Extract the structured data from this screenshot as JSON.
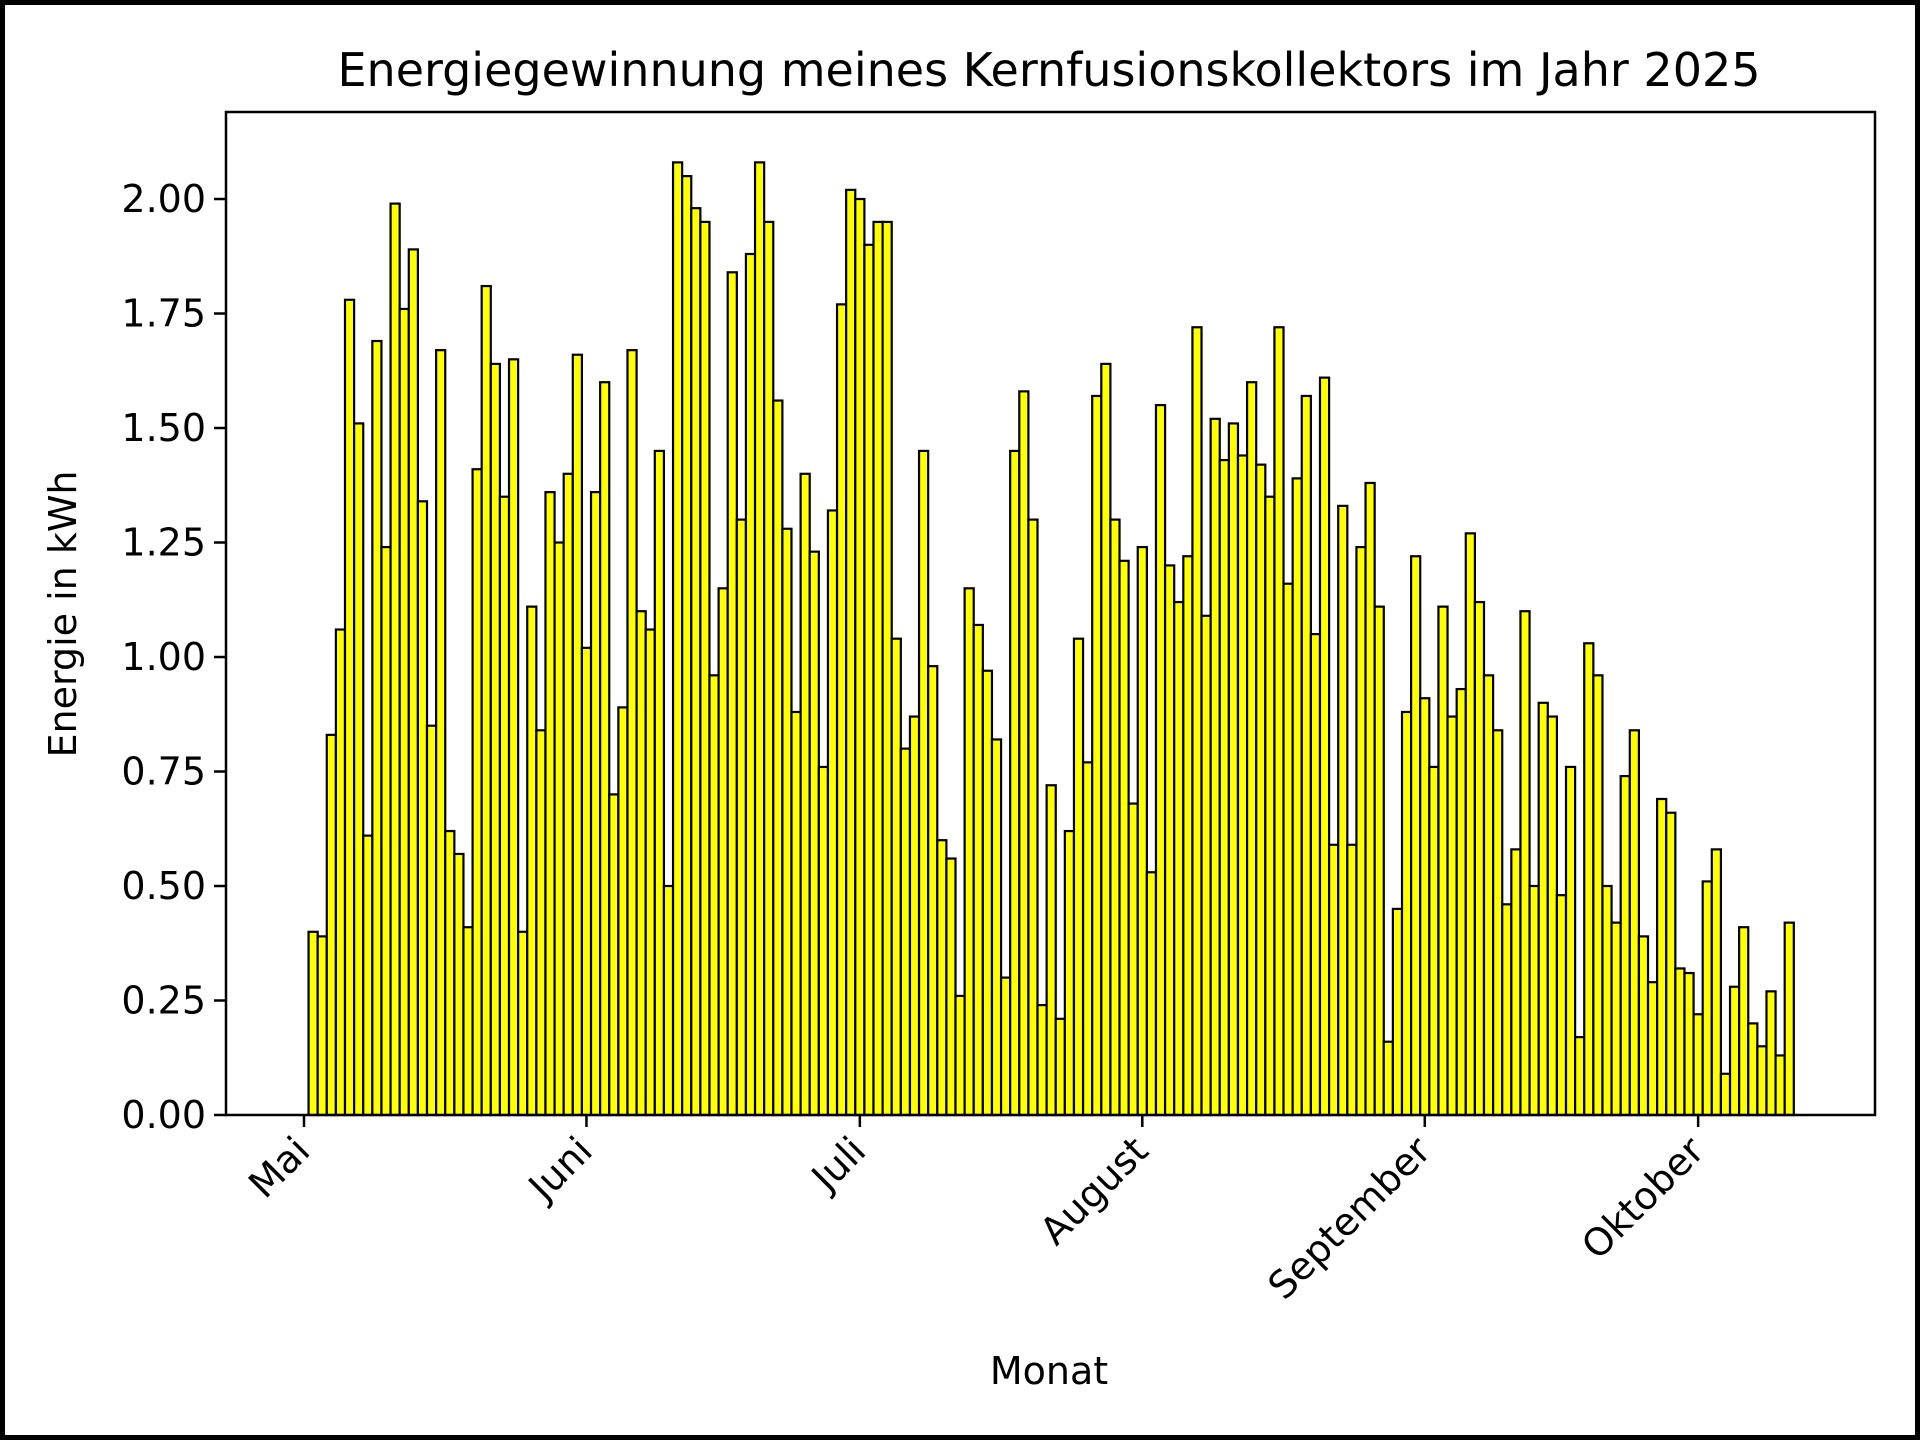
{
  "chart_data": {
    "type": "bar",
    "title": "Energiegewinnung meines Kernfusionskollektors im Jahr 2025",
    "xlabel": "Monat",
    "ylabel": "Energie in kWh",
    "ylim": [
      0,
      2.19
    ],
    "y_ticks": [
      "0.00",
      "0.25",
      "0.50",
      "0.75",
      "1.00",
      "1.25",
      "1.50",
      "1.75",
      "2.00"
    ],
    "x_ticks": [
      {
        "date": "2025-05-01",
        "label": "Mai"
      },
      {
        "date": "2025-06-01",
        "label": "Juni"
      },
      {
        "date": "2025-07-01",
        "label": "Juli"
      },
      {
        "date": "2025-08-01",
        "label": "August"
      },
      {
        "date": "2025-09-01",
        "label": "September"
      },
      {
        "date": "2025-10-01",
        "label": "Oktober"
      }
    ],
    "x_start": "2025-05-01",
    "bar_color": "#ffff00",
    "edge_color": "#000000",
    "grid": false,
    "values": [
      0.0,
      0.4,
      0.39,
      0.83,
      1.06,
      1.78,
      1.51,
      0.61,
      1.69,
      1.24,
      1.99,
      1.76,
      1.89,
      1.34,
      0.85,
      1.67,
      0.62,
      0.57,
      0.41,
      1.41,
      1.81,
      1.64,
      1.35,
      1.65,
      0.4,
      1.11,
      0.84,
      1.36,
      1.25,
      1.4,
      1.66,
      1.02,
      1.36,
      1.6,
      0.7,
      0.89,
      1.67,
      1.1,
      1.06,
      1.45,
      0.5,
      2.08,
      2.05,
      1.98,
      1.95,
      0.96,
      1.15,
      1.84,
      1.3,
      1.88,
      2.08,
      1.95,
      1.56,
      1.28,
      0.88,
      1.4,
      1.23,
      0.76,
      1.32,
      1.77,
      2.02,
      2.0,
      1.9,
      1.95,
      1.95,
      1.04,
      0.8,
      0.87,
      1.45,
      0.98,
      0.6,
      0.56,
      0.26,
      1.15,
      1.07,
      0.97,
      0.82,
      0.3,
      1.45,
      1.58,
      1.3,
      0.24,
      0.72,
      0.21,
      0.62,
      1.04,
      0.77,
      1.57,
      1.64,
      1.3,
      1.21,
      0.68,
      1.24,
      0.53,
      1.55,
      1.2,
      1.12,
      1.22,
      1.72,
      1.09,
      1.52,
      1.43,
      1.51,
      1.44,
      1.6,
      1.42,
      1.35,
      1.72,
      1.16,
      1.39,
      1.57,
      1.05,
      1.61,
      0.59,
      1.33,
      0.59,
      1.24,
      1.38,
      1.11,
      0.16,
      0.45,
      0.88,
      1.22,
      0.91,
      0.76,
      1.11,
      0.87,
      0.93,
      1.27,
      1.12,
      0.96,
      0.84,
      0.46,
      0.58,
      1.1,
      0.5,
      0.9,
      0.87,
      0.48,
      0.76,
      0.17,
      1.03,
      0.96,
      0.5,
      0.42,
      0.74,
      0.84,
      0.39,
      0.29,
      0.69,
      0.66,
      0.32,
      0.31,
      0.22,
      0.51,
      0.58,
      0.09,
      0.28,
      0.41,
      0.2,
      0.15,
      0.27,
      0.13,
      0.42
    ]
  }
}
